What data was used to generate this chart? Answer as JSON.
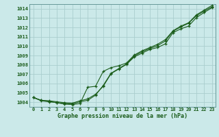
{
  "title": "Graphe pression niveau de la mer (hPa)",
  "background_color": "#cbe9e9",
  "grid_color": "#aacece",
  "line_color": "#1a5c1a",
  "x_labels": [
    "0",
    "1",
    "2",
    "3",
    "4",
    "5",
    "6",
    "7",
    "8",
    "9",
    "10",
    "11",
    "12",
    "13",
    "14",
    "15",
    "16",
    "17",
    "18",
    "19",
    "20",
    "21",
    "22",
    "23"
  ],
  "ylim": [
    1003.5,
    1014.5
  ],
  "yticks": [
    1004,
    1005,
    1006,
    1007,
    1008,
    1009,
    1010,
    1011,
    1012,
    1013,
    1014
  ],
  "line1": [
    1004.5,
    1004.2,
    1004.15,
    1004.05,
    1003.95,
    1003.9,
    1004.15,
    1004.35,
    1004.85,
    1005.7,
    1007.05,
    1007.55,
    1008.05,
    1008.85,
    1009.25,
    1009.65,
    1009.85,
    1010.25,
    1011.45,
    1011.85,
    1012.15,
    1013.05,
    1013.6,
    1014.1
  ],
  "line2": [
    1004.5,
    1004.2,
    1004.1,
    1003.95,
    1003.85,
    1003.8,
    1004.05,
    1004.2,
    1004.75,
    1005.8,
    1007.1,
    1007.6,
    1008.1,
    1008.95,
    1009.4,
    1009.75,
    1010.05,
    1010.55,
    1011.6,
    1012.05,
    1012.45,
    1013.25,
    1013.75,
    1014.2
  ],
  "line3": [
    1004.5,
    1004.15,
    1004.05,
    1003.95,
    1003.8,
    1003.75,
    1003.85,
    1005.6,
    1005.7,
    1007.3,
    1007.7,
    1007.9,
    1008.2,
    1009.05,
    1009.5,
    1009.85,
    1010.2,
    1010.7,
    1011.65,
    1012.15,
    1012.5,
    1013.35,
    1013.85,
    1014.35
  ]
}
